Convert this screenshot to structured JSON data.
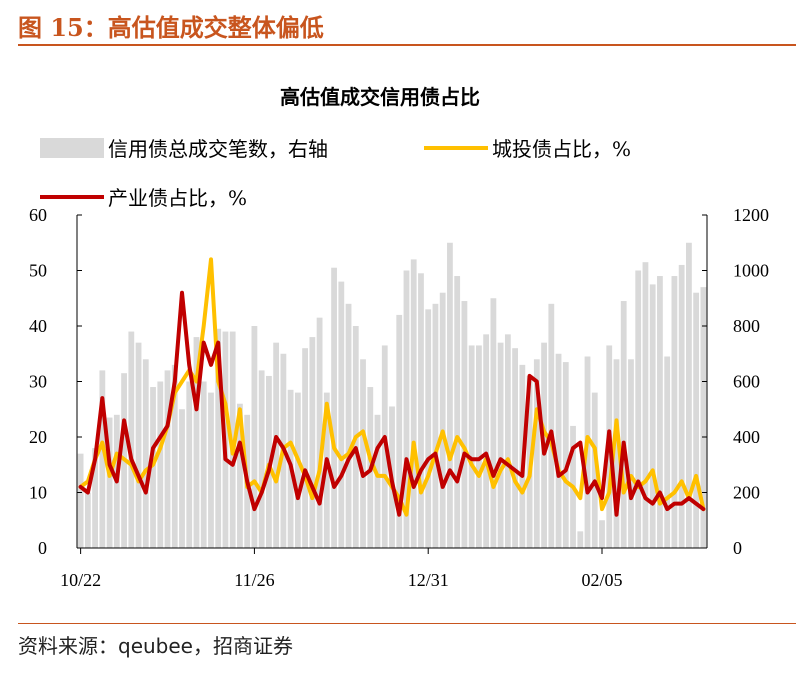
{
  "figure": {
    "title": "图 15：高估值成交整体偏低",
    "source": "资料来源：qeubee，招商证券"
  },
  "colors": {
    "accent": "#C8551E",
    "bars": "#D9D9D9",
    "chengtou": "#FFC000",
    "chanye": "#C00000"
  },
  "chart_data": {
    "type": "bar+line",
    "title": "高估值成交信用债占比",
    "legend": [
      {
        "name": "信用债总成交笔数，右轴",
        "kind": "bar",
        "color": "#D9D9D9"
      },
      {
        "name": "城投债占比，%",
        "kind": "line",
        "color": "#FFC000"
      },
      {
        "name": "产业债占比，%",
        "kind": "line",
        "color": "#C00000"
      }
    ],
    "legend_position": "top",
    "x_tick_labels": [
      {
        "label": "10/22",
        "index": 0
      },
      {
        "label": "11/26",
        "index": 24
      },
      {
        "label": "12/31",
        "index": 48
      },
      {
        "label": "02/05",
        "index": 72
      }
    ],
    "y_left": {
      "min": 0,
      "max": 60,
      "ticks": [
        "0",
        "10",
        "20",
        "30",
        "40",
        "50",
        "60"
      ]
    },
    "y_right": {
      "min": 0,
      "max": 1200,
      "ticks": [
        "0",
        "200",
        "400",
        "600",
        "800",
        "1000",
        "1200"
      ]
    },
    "series": [
      {
        "name": "信用债总成交笔数，右轴",
        "axis": "right",
        "values": [
          340,
          200,
          360,
          640,
          470,
          480,
          630,
          780,
          740,
          680,
          580,
          600,
          640,
          660,
          500,
          600,
          760,
          600,
          560,
          790,
          780,
          780,
          520,
          480,
          800,
          640,
          620,
          740,
          700,
          570,
          560,
          720,
          760,
          830,
          560,
          1010,
          960,
          880,
          800,
          680,
          580,
          480,
          730,
          510,
          840,
          1000,
          1040,
          990,
          860,
          880,
          920,
          1100,
          980,
          890,
          730,
          730,
          770,
          900,
          740,
          770,
          720,
          660,
          620,
          680,
          740,
          880,
          700,
          670,
          440,
          60,
          690,
          560,
          100,
          730,
          680,
          890,
          680,
          1000,
          1030,
          950,
          980,
          690,
          980,
          1020,
          1100,
          920,
          940
        ]
      },
      {
        "name": "城投债占比，%",
        "axis": "left",
        "values": [
          11,
          12,
          16,
          19,
          13,
          17,
          16,
          15,
          12,
          14,
          15,
          18,
          22,
          28,
          30,
          32,
          30,
          40,
          52,
          30,
          26,
          17,
          25,
          11,
          12,
          10,
          15,
          12,
          18,
          19,
          16,
          13,
          9,
          14,
          26,
          18,
          16,
          17,
          20,
          21,
          16,
          13,
          13,
          11,
          9,
          6,
          19,
          10,
          13,
          17,
          21,
          16,
          20,
          18,
          15,
          13,
          16,
          11,
          14,
          16,
          12,
          10,
          13,
          25,
          21,
          19,
          14,
          12,
          11,
          9,
          20,
          18,
          7,
          10,
          23,
          10,
          13,
          11,
          12,
          14,
          8,
          9,
          10,
          12,
          9,
          13,
          7
        ]
      },
      {
        "name": "产业债占比，%",
        "axis": "left",
        "values": [
          11,
          10,
          16,
          27,
          15,
          12,
          23,
          16,
          13,
          10,
          18,
          20,
          22,
          30,
          46,
          33,
          25,
          37,
          33,
          37,
          16,
          15,
          19,
          12,
          7,
          10,
          14,
          20,
          18,
          15,
          9,
          14,
          11,
          8,
          16,
          11,
          13,
          16,
          18,
          13,
          14,
          18,
          20,
          12,
          6,
          16,
          11,
          14,
          16,
          17,
          11,
          14,
          12,
          17,
          16,
          16,
          17,
          13,
          16,
          15,
          14,
          13,
          31,
          30,
          17,
          21,
          13,
          14,
          18,
          19,
          10,
          12,
          9,
          21,
          6,
          19,
          9,
          12,
          9,
          8,
          10,
          7,
          8,
          8,
          9,
          8,
          7
        ]
      }
    ]
  }
}
